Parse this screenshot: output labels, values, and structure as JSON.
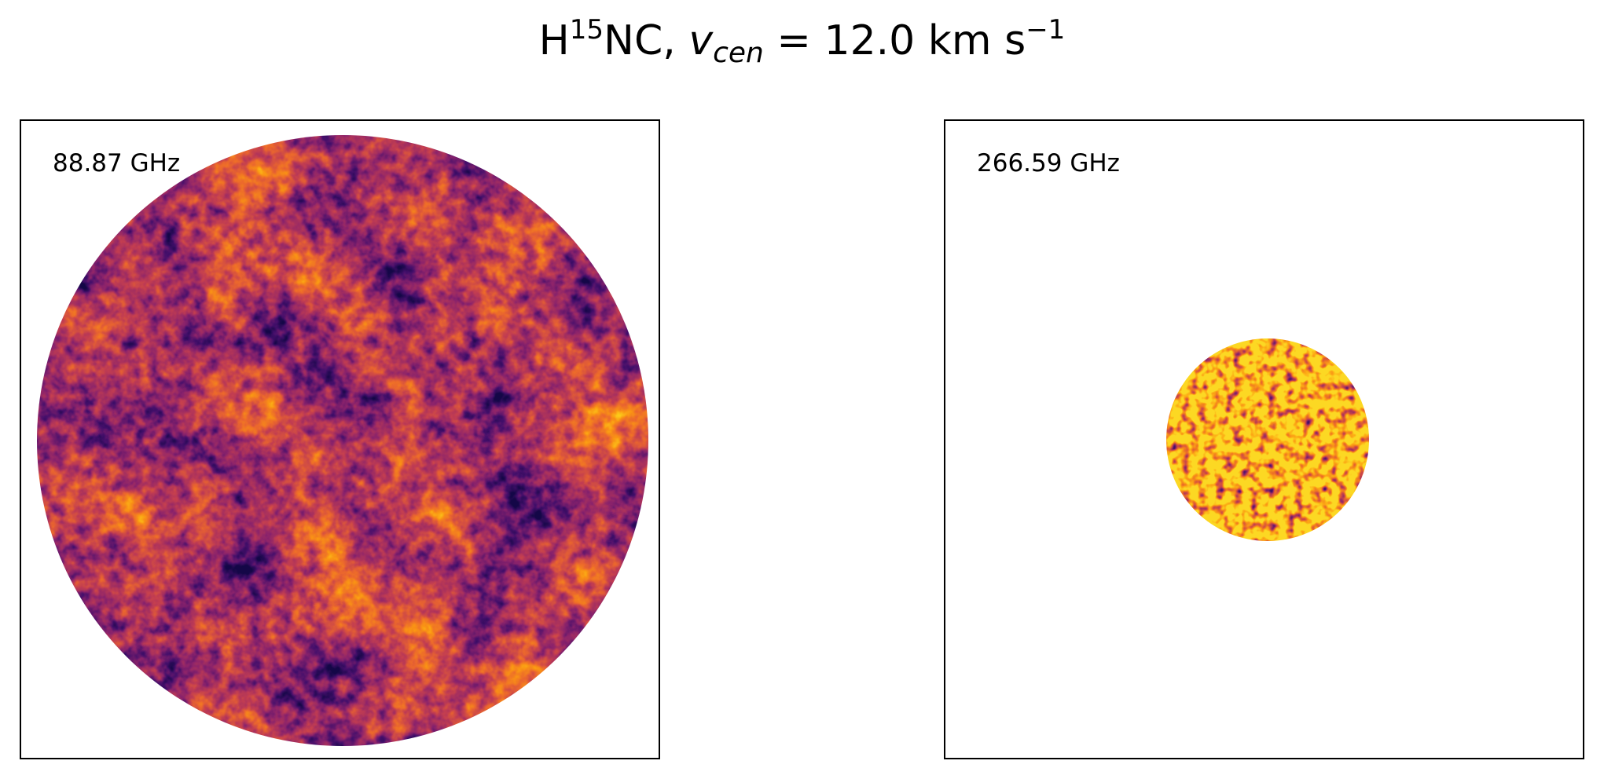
{
  "title": {
    "molecule_prefix": "H",
    "isotope": "15",
    "molecule_suffix": "NC, ",
    "velocity_symbol": "v",
    "velocity_subscript": "cen",
    "velocity_equals": " =  12.0 km s",
    "unit_exponent": "−1"
  },
  "panels": [
    {
      "label": "88.87 GHz",
      "image": "noise-like intensity map, circular field of view",
      "colormap": "inferno"
    },
    {
      "label": "266.59 GHz",
      "image": "noise-like intensity map, small circular field of view",
      "colormap": "inferno"
    }
  ],
  "colors": {
    "colormap_dark": "#2a0f55",
    "colormap_mid": "#b0305a",
    "colormap_bright": "#f7a21c",
    "frame": "#000000",
    "background": "#ffffff"
  }
}
